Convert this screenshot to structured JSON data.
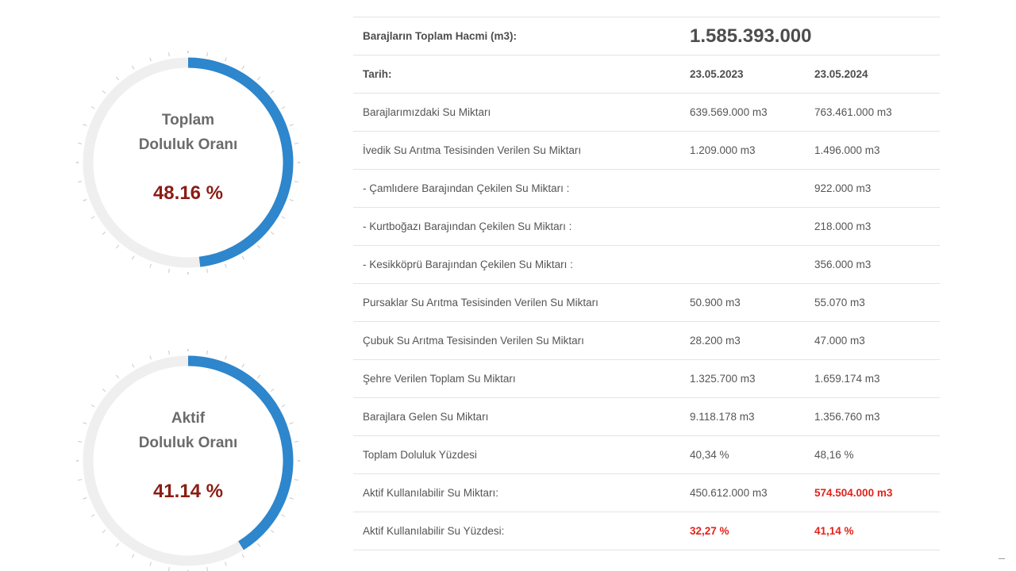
{
  "gauges": [
    {
      "title_line1": "Toplam",
      "title_line2": "Doluluk Oranı",
      "value_text": "48.16 %",
      "fill_percent": 48.16
    },
    {
      "title_line1": "Aktif",
      "title_line2": "Doluluk Oranı",
      "value_text": "41.14 %",
      "fill_percent": 41.14
    }
  ],
  "colors": {
    "gauge_fill": "#2e86cc",
    "gauge_track": "#efefef",
    "value_text": "#8b1c14",
    "highlight": "#e2231a"
  },
  "table": {
    "total_volume_label": "Barajların Toplam Hacmi (m3):",
    "total_volume_value": "1.585.393.000",
    "date_label": "Tarih:",
    "date1": "23.05.2023",
    "date2": "23.05.2024",
    "rows": [
      {
        "label": "Barajlarımızdaki Su Miktarı",
        "v1": "639.569.000 m3",
        "v2": "763.461.000 m3"
      },
      {
        "label": "İvedik Su Arıtma Tesisinden Verilen Su Miktarı",
        "v1": "1.209.000 m3",
        "v2": "1.496.000 m3"
      },
      {
        "label": "- Çamlıdere Barajından Çekilen Su Miktarı :",
        "v1": "",
        "v2": "922.000 m3"
      },
      {
        "label": "- Kurtboğazı Barajından Çekilen Su Miktarı :",
        "v1": "",
        "v2": "218.000 m3"
      },
      {
        "label": "- Kesikköprü Barajından Çekilen Su Miktarı :",
        "v1": "",
        "v2": "356.000 m3"
      },
      {
        "label": "Pursaklar Su Arıtma Tesisinden Verilen Su Miktarı",
        "v1": "50.900 m3",
        "v2": "55.070 m3"
      },
      {
        "label": "Çubuk Su Arıtma Tesisinden Verilen Su Miktarı",
        "v1": "28.200 m3",
        "v2": "47.000 m3"
      },
      {
        "label": "Şehre Verilen Toplam Su Miktarı",
        "v1": "1.325.700 m3",
        "v2": "1.659.174 m3"
      },
      {
        "label": "Barajlara Gelen Su Miktarı",
        "v1": "9.118.178 m3",
        "v2": "1.356.760 m3"
      },
      {
        "label": "Toplam Doluluk Yüzdesi",
        "v1": "40,34 %",
        "v2": "48,16 %"
      },
      {
        "label": "Aktif Kullanılabilir Su Miktarı:",
        "v1": "450.612.000 m3",
        "v2": "574.504.000 m3"
      },
      {
        "label": "Aktif Kullanılabilir Su Yüzdesi:",
        "v1": "32,27 %",
        "v2": "41,14 %"
      }
    ]
  }
}
